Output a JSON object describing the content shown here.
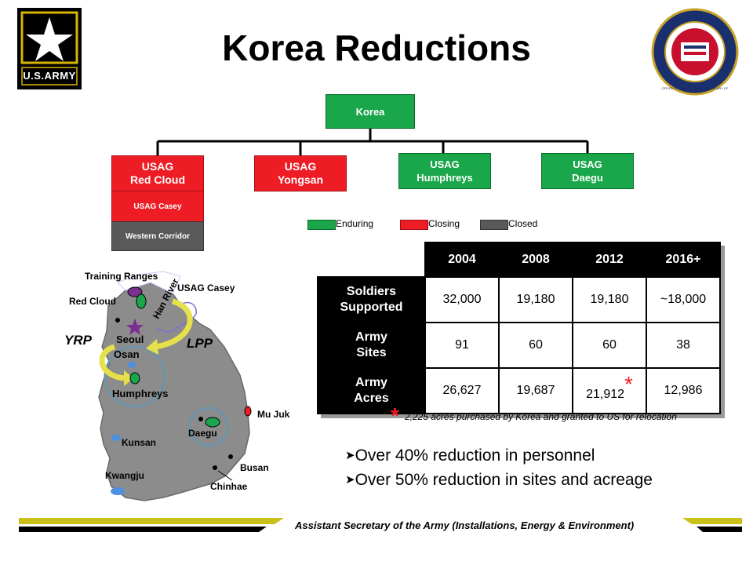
{
  "title": "Korea Reductions",
  "logos": {
    "army_star": "U.S.ARMY",
    "seal_text": "OFFICE OF THE ASSISTANT SECRETARY OF THE ARMY"
  },
  "org": {
    "root": "Korea",
    "children": [
      {
        "line1": "USAG",
        "line2": "Red Cloud",
        "status": "Closing"
      },
      {
        "line1": "USAG",
        "line2": "Yongsan",
        "status": "Closing"
      },
      {
        "line1": "USAG",
        "line2": "Humphreys",
        "status": "Enduring"
      },
      {
        "line1": "USAG",
        "line2": "Daegu",
        "status": "Enduring"
      }
    ],
    "sub_casey": "USAG Casey",
    "sub_corridor": "Western Corridor"
  },
  "legend": {
    "enduring": "Enduring",
    "closing": "Closing",
    "closed": "Closed"
  },
  "colors": {
    "enduring": "#1aa64a",
    "closing": "#ee1c25",
    "closed": "#595959",
    "accent_gold": "#c9c11a"
  },
  "table": {
    "years": [
      "2004",
      "2008",
      "2012",
      "2016+"
    ],
    "rows": [
      {
        "line1": "Soldiers",
        "line2": "Supported",
        "values": [
          "32,000",
          "19,180",
          "19,180",
          "~18,000"
        ]
      },
      {
        "line1": "Army",
        "line2": "Sites",
        "values": [
          "91",
          "60",
          "60",
          "38"
        ]
      },
      {
        "line1": "Army",
        "line2": "Acres",
        "values": [
          "26,627",
          "19,687",
          "21,912",
          "12,986"
        ]
      }
    ],
    "asterisk": "*"
  },
  "footnote": {
    "mark": "*",
    "text": "2,225 acres purchased by Korea and granted to US for relocation"
  },
  "map": {
    "training_ranges": "Training Ranges",
    "usag_casey": "USAG Casey",
    "red_cloud": "Red Cloud",
    "han_river": "Han River",
    "yrp": "YRP",
    "seoul": "Seoul",
    "lpp": "LPP",
    "osan": "Osan",
    "humphreys": "Humphreys",
    "mu_juk": "Mu Juk",
    "daegu": "Daegu",
    "kunsan": "Kunsan",
    "busan": "Busan",
    "kwangju": "Kwangju",
    "chinhae": "Chinhae"
  },
  "bullets": [
    "Over 40% reduction in personnel",
    "Over 50% reduction in sites and acreage"
  ],
  "footer": "Assistant Secretary of the Army (Installations, Energy & Environment)"
}
